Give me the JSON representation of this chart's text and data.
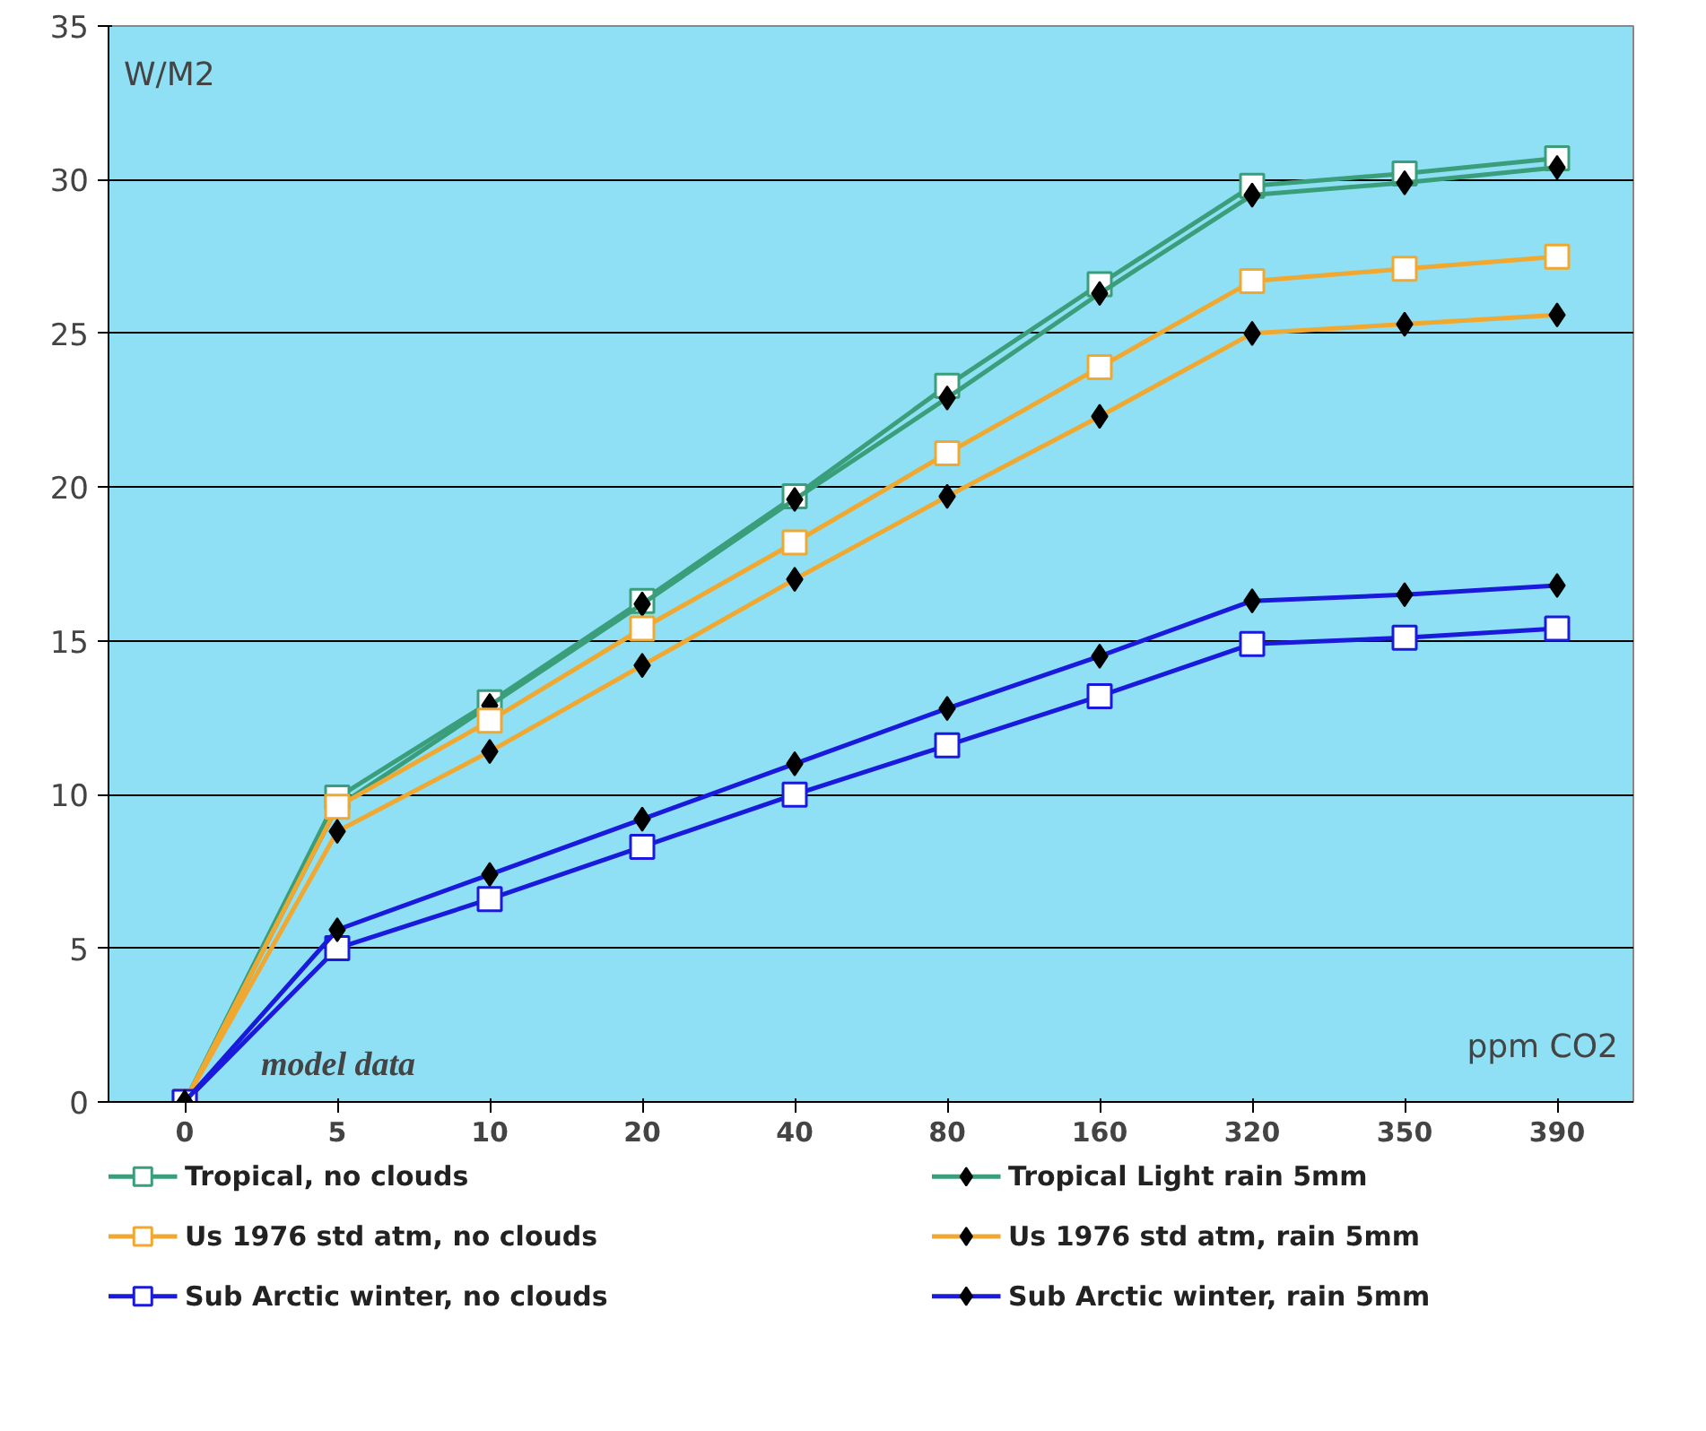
{
  "chart_data": {
    "type": "line",
    "categories": [
      "0",
      "5",
      "10",
      "20",
      "40",
      "80",
      "160",
      "320",
      "350",
      "390"
    ],
    "xlabel": "ppm CO2",
    "ylabel": "W/M2",
    "annotations": [
      "model data"
    ],
    "ylim": [
      0,
      35
    ],
    "yticks": [
      0,
      5,
      10,
      15,
      20,
      25,
      30,
      35
    ],
    "grid": "y",
    "legend": "bottom",
    "line_style": "solid",
    "series": [
      {
        "name": "Tropical, no clouds",
        "color": "#3a9e7a",
        "marker": "square",
        "values": [
          0,
          9.9,
          13.0,
          16.3,
          19.7,
          23.3,
          26.6,
          29.8,
          30.2,
          30.7
        ]
      },
      {
        "name": "Tropical Light rain 5mm",
        "color": "#3a9e7a",
        "marker": "diamond",
        "values": [
          0,
          9.6,
          12.9,
          16.2,
          19.6,
          22.9,
          26.3,
          29.5,
          29.9,
          30.4
        ]
      },
      {
        "name": "Us 1976 std atm, no clouds",
        "color": "#f0a830",
        "marker": "square",
        "values": [
          0,
          9.6,
          12.4,
          15.4,
          18.2,
          21.1,
          23.9,
          26.7,
          27.1,
          27.5
        ]
      },
      {
        "name": "Us 1976 std atm, rain 5mm",
        "color": "#f0a830",
        "marker": "diamond",
        "values": [
          0,
          8.8,
          11.4,
          14.2,
          17.0,
          19.7,
          22.3,
          25.0,
          25.3,
          25.6
        ]
      },
      {
        "name": "Sub Arctic winter, no clouds",
        "color": "#1a1adc",
        "marker": "square",
        "values": [
          0,
          5.0,
          6.6,
          8.3,
          10.0,
          11.6,
          13.2,
          14.9,
          15.1,
          15.4
        ]
      },
      {
        "name": "Sub Arctic winter, rain 5mm",
        "color": "#1a1adc",
        "marker": "diamond",
        "values": [
          0,
          5.6,
          7.4,
          9.2,
          11.0,
          12.8,
          14.5,
          16.3,
          16.5,
          16.8
        ]
      }
    ]
  }
}
